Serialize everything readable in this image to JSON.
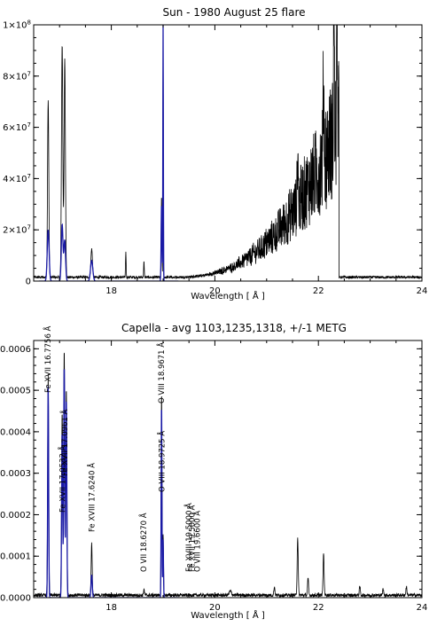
{
  "chart_data": [
    {
      "type": "line",
      "title": "Sun - 1980 August 25 flare",
      "xlabel": "Wavelength [ Å ]",
      "ylabel": "",
      "xlim": [
        16.5,
        24.0
      ],
      "ylim": [
        0,
        100000000
      ],
      "grid": false,
      "xticks": [
        18,
        20,
        22,
        24
      ],
      "xtick_labels": [
        "18",
        "20",
        "22",
        "24"
      ],
      "yticks": [
        0,
        20000000,
        40000000,
        60000000,
        80000000,
        100000000
      ],
      "ytick_labels": [
        {
          "mant": "0",
          "exp": ""
        },
        {
          "mant": "2×10",
          "exp": "7"
        },
        {
          "mant": "4×10",
          "exp": "7"
        },
        {
          "mant": "6×10",
          "exp": "7"
        },
        {
          "mant": "8×10",
          "exp": "7"
        },
        {
          "mant": "1×10",
          "exp": "8"
        }
      ],
      "series": [
        {
          "color": "#000000",
          "baseline": 1500000,
          "noise": 500000,
          "continuum": {
            "start": 19.2,
            "amp": 60000000,
            "power": 2.6,
            "end": 22.4,
            "noise_frac": 0.45
          },
          "lines": [
            [
              16.78,
              69000000,
              0.012
            ],
            [
              17.05,
              91000000,
              0.013
            ],
            [
              17.1,
              85000000,
              0.013
            ],
            [
              17.62,
              11000000,
              0.015
            ],
            [
              18.28,
              10000000,
              0.006
            ],
            [
              18.63,
              6000000,
              0.006
            ],
            [
              18.97,
              32000000,
              0.007
            ],
            [
              19.0,
              100000000,
              0.004
            ],
            [
              21.6,
              20000000,
              0.01
            ],
            [
              22.1,
              30000000,
              0.01
            ],
            [
              22.3,
              100000000,
              0.006
            ],
            [
              22.36,
              100000000,
              0.006
            ]
          ]
        },
        {
          "color": "#1a1aa6",
          "baseline": 0,
          "noise": 0,
          "range": [
            16.6,
            19.3
          ],
          "lines": [
            [
              16.78,
              20000000,
              0.018
            ],
            [
              17.05,
              22000000,
              0.016
            ],
            [
              17.1,
              16000000,
              0.016
            ],
            [
              17.62,
              8000000,
              0.022
            ],
            [
              18.97,
              30000000,
              0.008
            ],
            [
              19.0,
              100000000,
              0.005
            ]
          ]
        }
      ]
    },
    {
      "type": "line",
      "title": "Capella - avg 1103,1235,1318, +/-1 METG",
      "xlabel": "Wavelength [ Å ]",
      "ylabel": "",
      "xlim": [
        16.5,
        24.0
      ],
      "ylim": [
        0,
        0.00062
      ],
      "grid": false,
      "xticks": [
        18,
        20,
        22,
        24
      ],
      "xtick_labels": [
        "18",
        "20",
        "22",
        "24"
      ],
      "yticks": [
        0,
        0.0001,
        0.0002,
        0.0003,
        0.0004,
        0.0005,
        0.0006
      ],
      "ytick_labels": [
        "0.0000",
        "0.0001",
        "0.0002",
        "0.0003",
        "0.0004",
        "0.0005",
        "0.0006"
      ],
      "annotations": [
        {
          "text": "Fe XVII 16.7756 Å",
          "x": 16.7756
        },
        {
          "text": "Fe XVII 17.0961 Å",
          "x": 17.0961
        },
        {
          "text": "Fe XVII 17.0532 Å",
          "x": 17.0532
        },
        {
          "text": "Fe XVIII 17.6240 Å",
          "x": 17.624
        },
        {
          "text": "O VII 18.6270 Å",
          "x": 18.627
        },
        {
          "text": "O VIII 18.9671 Å",
          "x": 18.9671
        },
        {
          "text": "O VIII 18.9725 Å",
          "x": 18.9725
        },
        {
          "text": "Fe XVIII 19.5000 Å",
          "x": 19.5
        },
        {
          "text": "Fe XVII 19.5600 Å",
          "x": 19.56
        },
        {
          "text": "O VIII 19.6600 Å",
          "x": 19.66
        }
      ],
      "series": [
        {
          "color": "#000000",
          "baseline": 6e-06,
          "noise": 4e-06,
          "lines": [
            [
              16.78,
              0.00053,
              0.01
            ],
            [
              17.05,
              0.00044,
              0.011
            ],
            [
              17.09,
              0.00059,
              0.011
            ],
            [
              17.13,
              0.0005,
              0.011
            ],
            [
              17.62,
              0.000125,
              0.01
            ],
            [
              18.63,
              1.5e-05,
              0.008
            ],
            [
              18.97,
              0.00049,
              0.008
            ],
            [
              19.0,
              0.00015,
              0.008
            ],
            [
              20.3,
              1e-05,
              0.02
            ],
            [
              21.15,
              2e-05,
              0.01
            ],
            [
              21.6,
              0.00014,
              0.01
            ],
            [
              21.8,
              4e-05,
              0.01
            ],
            [
              22.1,
              0.0001,
              0.01
            ],
            [
              22.8,
              2e-05,
              0.01
            ],
            [
              23.25,
              1.5e-05,
              0.01
            ],
            [
              23.7,
              2e-05,
              0.01
            ]
          ]
        },
        {
          "color": "#1a1aa6",
          "baseline": 0,
          "noise": 0,
          "range": [
            16.6,
            19.3
          ],
          "lines": [
            [
              16.78,
              0.00051,
              0.009
            ],
            [
              17.05,
              0.0004,
              0.01
            ],
            [
              17.09,
              0.00056,
              0.01
            ],
            [
              17.13,
              0.00048,
              0.01
            ],
            [
              17.62,
              5.5e-05,
              0.012
            ],
            [
              18.97,
              0.00047,
              0.007
            ],
            [
              19.0,
              0.00014,
              0.007
            ]
          ]
        }
      ]
    }
  ]
}
